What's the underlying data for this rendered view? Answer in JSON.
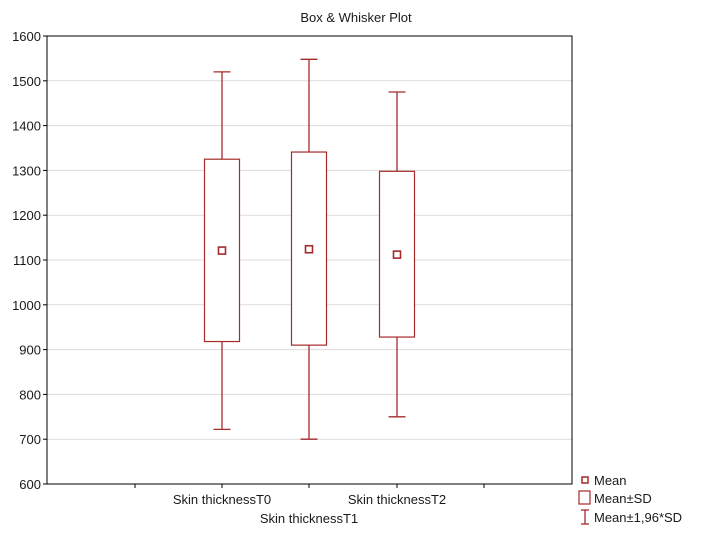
{
  "chart_data": {
    "type": "box",
    "title": "Box & Whisker Plot",
    "xlabel": "",
    "ylabel": "",
    "ylim": [
      600,
      1600
    ],
    "yticks": [
      600,
      700,
      800,
      900,
      1000,
      1100,
      1200,
      1300,
      1400,
      1500,
      1600
    ],
    "grid": true,
    "categories": [
      "Skin thicknessT0",
      "Skin thicknessT1",
      "Skin thicknessT2"
    ],
    "series": [
      {
        "category": "Skin thicknessT0",
        "mean": 1121,
        "box_low": 918,
        "box_high": 1325,
        "whisker_low": 722,
        "whisker_high": 1520
      },
      {
        "category": "Skin thicknessT1",
        "mean": 1124,
        "box_low": 910,
        "box_high": 1341,
        "whisker_low": 700,
        "whisker_high": 1548
      },
      {
        "category": "Skin thicknessT2",
        "mean": 1112,
        "box_low": 928,
        "box_high": 1298,
        "whisker_low": 750,
        "whisker_high": 1475
      }
    ],
    "legend": {
      "position": "bottom-right",
      "items": [
        "Mean",
        "Mean±SD",
        "Mean±1,96*SD"
      ]
    },
    "colors": {
      "series": "#a52a2a",
      "grid": "#dcdcdc",
      "axis": "#000000"
    }
  }
}
